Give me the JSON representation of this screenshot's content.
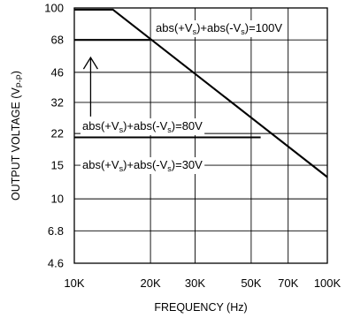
{
  "chart_data": {
    "type": "line",
    "x_scale": "log",
    "y_scale": "log",
    "xlim": [
      10000,
      100000
    ],
    "ylim": [
      4.6,
      100
    ],
    "xlabel": "FREQUENCY (Hz)",
    "ylabel": {
      "main": "OUTPUT VOLTAGE (V",
      "sub": "P-P",
      "close": ")"
    },
    "x_ticks": [
      {
        "value": 10000,
        "label": "10K"
      },
      {
        "value": 20000,
        "label": "20K"
      },
      {
        "value": 30000,
        "label": "30K"
      },
      {
        "value": 50000,
        "label": "50K"
      },
      {
        "value": 70000,
        "label": "70K"
      },
      {
        "value": 100000,
        "label": "100K"
      }
    ],
    "y_ticks": [
      {
        "value": 4.6,
        "label": "4.6"
      },
      {
        "value": 6.8,
        "label": "6.8"
      },
      {
        "value": 10,
        "label": "10"
      },
      {
        "value": 15,
        "label": "15"
      },
      {
        "value": 22,
        "label": "22"
      },
      {
        "value": 32,
        "label": "32"
      },
      {
        "value": 46,
        "label": "46"
      },
      {
        "value": 68,
        "label": "68"
      },
      {
        "value": 100,
        "label": "100"
      }
    ],
    "grid": true,
    "series": [
      {
        "points": [
          [
            10000,
            98
          ],
          [
            14200,
            98
          ],
          [
            100000,
            13
          ]
        ]
      },
      {
        "points": [
          [
            10000,
            68
          ],
          [
            20000,
            68
          ]
        ]
      },
      {
        "points": [
          [
            10000,
            21
          ],
          [
            54500,
            21
          ]
        ]
      }
    ],
    "annotations": [
      {
        "parts": [
          "abs(+V",
          "s",
          ")+abs(-V",
          "s",
          ")=100V"
        ]
      },
      {
        "parts": [
          "abs(+V",
          "s",
          ")+abs(-V",
          "s",
          ")=80V"
        ]
      },
      {
        "parts": [
          "abs(+V",
          "s",
          ")+abs(-V",
          "s",
          ")=30V"
        ]
      }
    ],
    "arrow": {
      "x": 11600,
      "from_y": 27,
      "to_y": 55
    }
  }
}
